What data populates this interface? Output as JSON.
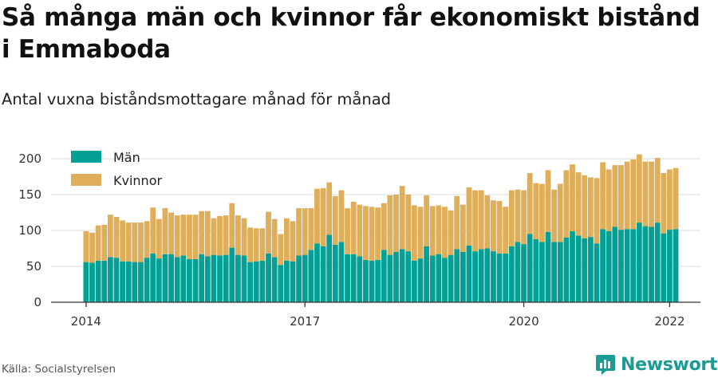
{
  "title": "Så många män och kvinnor får ekonomiskt bistånd i Emmaboda",
  "subtitle": "Antal vuxna biståndsmottagare månad för månad",
  "source": "Källa: Socialstyrelsen",
  "brand": "Newsworthy",
  "colors": {
    "men": "#05a095",
    "women": "#deae5a",
    "grid": "#dddddd",
    "brand": "#1a9b93"
  },
  "chart_data": {
    "type": "bar",
    "stacked": true,
    "legend": "top-left",
    "grid": true,
    "ylim": [
      0,
      210
    ],
    "yticks": [
      0,
      50,
      100,
      150,
      200
    ],
    "xticks": [
      {
        "label": "2014",
        "date": "2014-01"
      },
      {
        "label": "2017",
        "date": "2017-01"
      },
      {
        "label": "2020",
        "date": "2020-01"
      },
      {
        "label": "2022",
        "date": "2022-01"
      }
    ],
    "x_start": "2014-01",
    "series": [
      {
        "name": "Män",
        "values": [
          56,
          55,
          58,
          58,
          63,
          62,
          57,
          57,
          56,
          56,
          62,
          68,
          61,
          67,
          67,
          63,
          65,
          60,
          60,
          67,
          64,
          66,
          65,
          66,
          76,
          66,
          65,
          56,
          57,
          58,
          68,
          63,
          52,
          58,
          57,
          65,
          66,
          73,
          82,
          78,
          94,
          80,
          84,
          67,
          67,
          64,
          59,
          58,
          59,
          73,
          66,
          70,
          74,
          71,
          58,
          61,
          78,
          65,
          67,
          62,
          66,
          74,
          70,
          79,
          71,
          74,
          75,
          71,
          68,
          68,
          78,
          84,
          81,
          95,
          88,
          84,
          98,
          84,
          84,
          90,
          99,
          93,
          89,
          91,
          82,
          102,
          99,
          105,
          101,
          102,
          102,
          111,
          106,
          105,
          111,
          96,
          101,
          102
        ]
      },
      {
        "name": "Kvinnor",
        "values": [
          43,
          42,
          49,
          50,
          59,
          57,
          57,
          54,
          55,
          55,
          51,
          64,
          55,
          64,
          58,
          58,
          57,
          62,
          62,
          60,
          63,
          51,
          55,
          55,
          62,
          55,
          52,
          48,
          46,
          45,
          58,
          53,
          43,
          59,
          56,
          66,
          65,
          58,
          76,
          81,
          73,
          68,
          72,
          64,
          73,
          72,
          75,
          75,
          73,
          65,
          83,
          80,
          88,
          79,
          77,
          72,
          71,
          69,
          68,
          71,
          62,
          74,
          66,
          81,
          85,
          82,
          74,
          71,
          73,
          65,
          78,
          73,
          75,
          85,
          78,
          81,
          86,
          73,
          81,
          94,
          93,
          88,
          88,
          83,
          91,
          93,
          86,
          86,
          90,
          94,
          97,
          95,
          90,
          91,
          90,
          84,
          84,
          85
        ]
      }
    ]
  }
}
